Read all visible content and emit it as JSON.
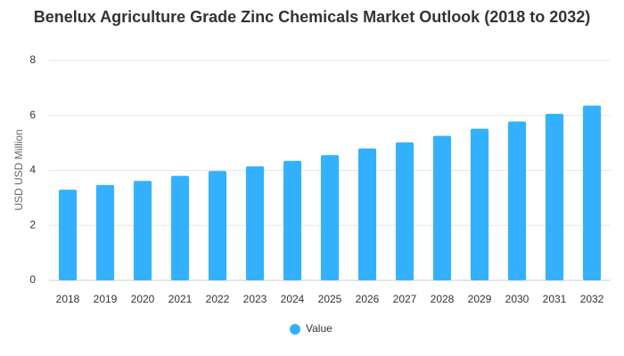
{
  "chart_data": {
    "type": "bar",
    "title": "Benelux Agriculture Grade Zinc Chemicals Market Outlook (2018 to 2032)",
    "xlabel": "",
    "ylabel": "USD USD Million",
    "categories": [
      "2018",
      "2019",
      "2020",
      "2021",
      "2022",
      "2023",
      "2024",
      "2025",
      "2026",
      "2027",
      "2028",
      "2029",
      "2030",
      "2031",
      "2032"
    ],
    "series": [
      {
        "name": "Value",
        "color": "#33b1ff",
        "values": [
          3.3,
          3.47,
          3.62,
          3.8,
          3.98,
          4.15,
          4.35,
          4.56,
          4.8,
          5.02,
          5.26,
          5.52,
          5.78,
          6.06,
          6.36
        ]
      }
    ],
    "ylim": [
      0,
      8
    ],
    "yticks": [
      "0",
      "2",
      "4",
      "6",
      "8"
    ],
    "grid": true,
    "legend_position": "bottom-center"
  }
}
